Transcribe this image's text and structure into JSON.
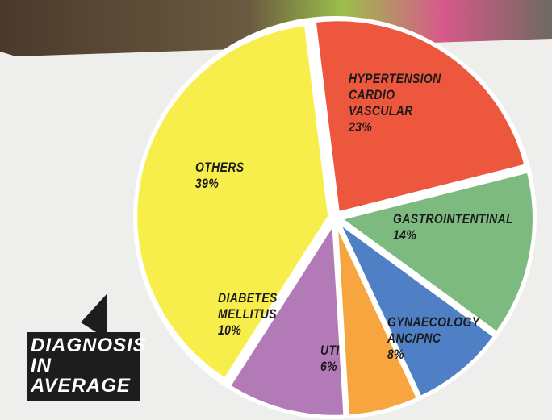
{
  "chart_data": {
    "type": "pie",
    "title": "DIAGNOSIS IN AVERAGE",
    "categories": [
      "HYPERTENSION CARDIO VASCULAR",
      "GASTROINTENTINAL",
      "GYNAECOLOGY ANC/PNC",
      "UTI",
      "DIABETES MELLITUS",
      "OTHERS"
    ],
    "values": [
      23,
      14,
      8,
      6,
      10,
      39
    ],
    "value_labels": [
      "23%",
      "14%",
      "8%",
      "6%",
      "10%",
      "39%"
    ],
    "colors": [
      "#ec573d",
      "#7dba7f",
      "#4f80c6",
      "#f6a53f",
      "#b27ab6",
      "#f8ee4b"
    ]
  }
}
